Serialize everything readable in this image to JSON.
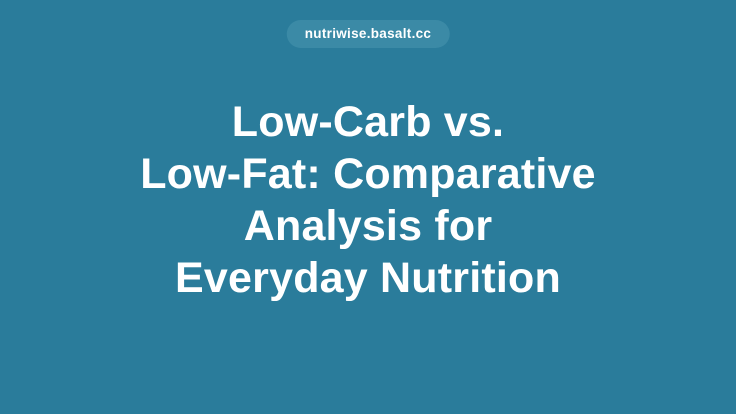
{
  "page": {
    "background_color": "#2a7c9b",
    "badge": {
      "label": "nutriwise.basalt.cc",
      "background_color": "#3b8aa6",
      "text_color": "#ffffff"
    },
    "title": {
      "text": "Low-Carb vs. Low-Fat: Comparative Analysis for Everyday Nutrition",
      "color": "#ffffff",
      "lines": [
        "Low-Carb vs.",
        "Low-Fat: Comparative",
        "Analysis for",
        "Everyday Nutrition"
      ]
    }
  }
}
